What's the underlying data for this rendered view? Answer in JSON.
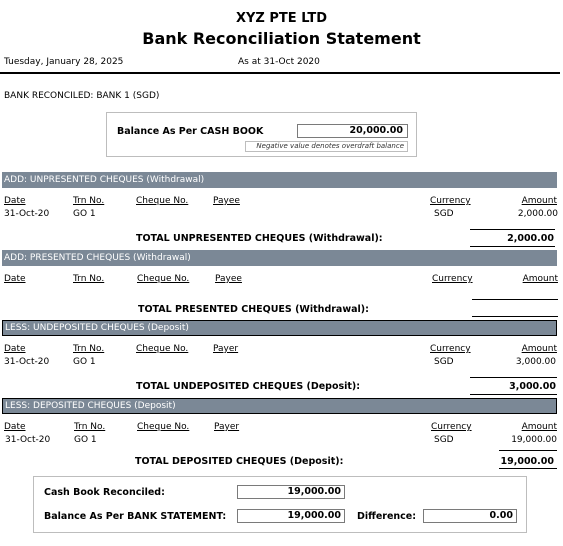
{
  "header": {
    "company": "XYZ PTE LTD",
    "title": "Bank Reconciliation Statement",
    "print_date": "Tuesday, January 28, 2025",
    "as_at": "As at 31-Oct 2020"
  },
  "bank_reconciled": "BANK RECONCILED: BANK 1 (SGD)",
  "cash_book": {
    "label": "Balance As Per CASH BOOK",
    "value": "20,000.00",
    "note": "Negative value denotes overdraft balance"
  },
  "sections": {
    "unpresented": {
      "band": "ADD: UNPRESENTED CHEQUES (Withdrawal)",
      "columns": {
        "date": "Date",
        "trn": "Trn No.",
        "cheque": "Cheque No.",
        "party": "Payee",
        "currency": "Currency",
        "amount": "Amount"
      },
      "rows": [
        {
          "date": "31-Oct-20",
          "trn": "GO 1",
          "cheque": "",
          "party": "",
          "currency": "SGD",
          "amount": "2,000.00"
        }
      ],
      "total_label": "TOTAL UNPRESENTED CHEQUES (Withdrawal):",
      "total_value": "2,000.00"
    },
    "presented": {
      "band": "ADD: PRESENTED CHEQUES (Withdrawal)",
      "columns": {
        "date": "Date",
        "trn": "Trn No.",
        "cheque": "Cheque No.",
        "party": "Payee",
        "currency": "Currency",
        "amount": "Amount"
      },
      "total_label": "TOTAL PRESENTED CHEQUES (Withdrawal):",
      "total_value": ""
    },
    "undeposited": {
      "band": "LESS: UNDEPOSITED CHEQUES (Deposit)",
      "columns": {
        "date": "Date",
        "trn": "Trn No.",
        "cheque": "Cheque No.",
        "party": "Payer",
        "currency": "Currency",
        "amount": "Amount"
      },
      "rows": [
        {
          "date": "31-Oct-20",
          "trn": "GO 1",
          "cheque": "",
          "party": "",
          "currency": "SGD",
          "amount": "3,000.00"
        }
      ],
      "total_label": "TOTAL UNDEPOSITED CHEQUES (Deposit):",
      "total_value": "3,000.00"
    },
    "deposited": {
      "band": "LESS: DEPOSITED CHEQUES (Deposit)",
      "columns": {
        "date": "Date",
        "trn": "Trn No.",
        "cheque": "Cheque No.",
        "party": "Payer",
        "currency": "Currency",
        "amount": "Amount"
      },
      "rows": [
        {
          "date": "31-Oct-20",
          "trn": "GO 1",
          "cheque": "",
          "party": "",
          "currency": "SGD",
          "amount": "19,000.00"
        }
      ],
      "total_label": "TOTAL DEPOSITED CHEQUES (Deposit):",
      "total_value": "19,000.00"
    }
  },
  "summary": {
    "cash_book_reconciled_label": "Cash Book Reconciled:",
    "cash_book_reconciled_value": "19,000.00",
    "bank_statement_label": "Balance As Per BANK STATEMENT:",
    "bank_statement_value": "19,000.00",
    "difference_label": "Difference:",
    "difference_value": "0.00"
  }
}
